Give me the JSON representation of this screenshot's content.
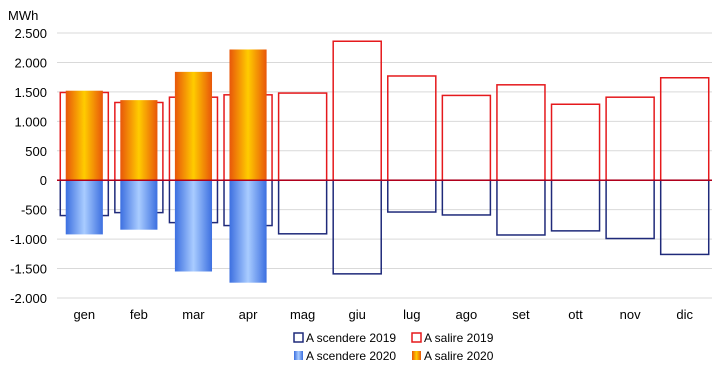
{
  "chart_data": {
    "type": "bar",
    "ylabel": "MWh",
    "ylim": [
      -2000,
      2500
    ],
    "yticks": [
      -2000,
      -1500,
      -1000,
      -500,
      0,
      500,
      1000,
      1500,
      2000,
      2500
    ],
    "ytick_labels": [
      "-2.000",
      "-1.500",
      "-1.000",
      "-500",
      "0",
      "500",
      "1.000",
      "1.500",
      "2.000",
      "2.500"
    ],
    "grid": true,
    "legend_position": "bottom",
    "categories": [
      "gen",
      "feb",
      "mar",
      "apr",
      "mag",
      "giu",
      "lug",
      "ago",
      "set",
      "ott",
      "nov",
      "dic"
    ],
    "series": [
      {
        "name": "A scendere 2019",
        "style": "outline",
        "color": "#1f2a7a",
        "values": [
          -600,
          -550,
          -720,
          -770,
          -910,
          -1590,
          -540,
          -590,
          -930,
          -860,
          -990,
          -1260
        ]
      },
      {
        "name": "A salire 2019",
        "style": "outline",
        "color": "#e5191c",
        "values": [
          1490,
          1320,
          1410,
          1450,
          1480,
          2360,
          1770,
          1440,
          1620,
          1290,
          1410,
          1740
        ]
      },
      {
        "name": "A scendere 2020",
        "style": "gradient",
        "color": "#5b8ff0",
        "values": [
          -920,
          -840,
          -1550,
          -1740,
          null,
          null,
          null,
          null,
          null,
          null,
          null,
          null
        ]
      },
      {
        "name": "A salire 2020",
        "style": "gradient",
        "color": "#f28a00",
        "values": [
          1520,
          1360,
          1840,
          2220,
          null,
          null,
          null,
          null,
          null,
          null,
          null,
          null
        ]
      }
    ]
  }
}
